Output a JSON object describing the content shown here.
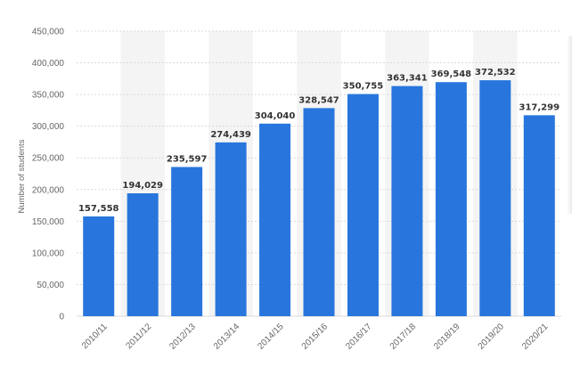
{
  "chart_data": {
    "type": "bar",
    "title": "",
    "xlabel": "",
    "ylabel": "Number of students",
    "ylim": [
      0,
      450000
    ],
    "yticks": [
      0,
      50000,
      100000,
      150000,
      200000,
      250000,
      300000,
      350000,
      400000,
      450000
    ],
    "ytick_labels": [
      "0",
      "50,000",
      "100,000",
      "150,000",
      "200,000",
      "250,000",
      "300,000",
      "350,000",
      "400,000",
      "450,000"
    ],
    "categories": [
      "2010/11",
      "2011/12",
      "2012/13",
      "2013/14",
      "2014/15",
      "2015/16",
      "2016/17",
      "2017/18",
      "2018/19",
      "2019/20",
      "2020/21"
    ],
    "values": [
      157558,
      194029,
      235597,
      274439,
      304040,
      328547,
      350755,
      363341,
      369548,
      372532,
      317299
    ],
    "value_labels": [
      "157,558",
      "194,029",
      "235,597",
      "274,439",
      "304,040",
      "328,547",
      "350,755",
      "363,341",
      "369,548",
      "372,532",
      "317,299"
    ],
    "grid": true,
    "legend": "none",
    "colors": {
      "bar": "#2876dd",
      "grid": "#d9d9d9",
      "band": "#f4f4f4",
      "tick_text": "#666666",
      "label_text": "#333333"
    }
  }
}
